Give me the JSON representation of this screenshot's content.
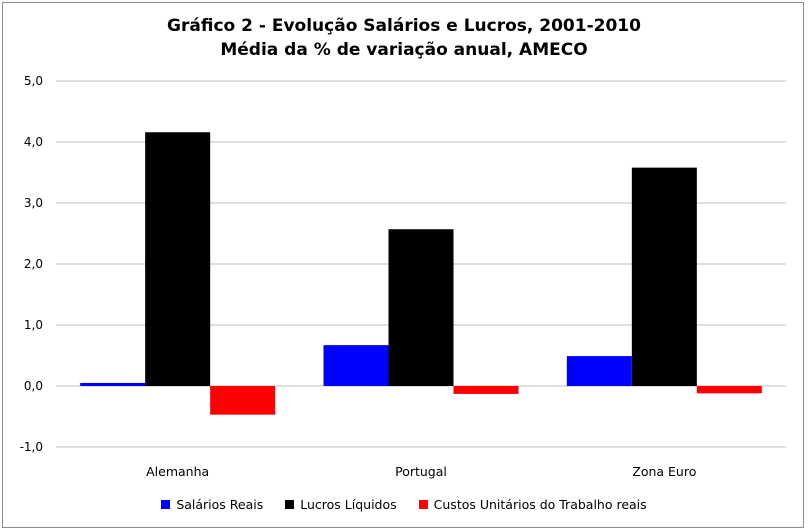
{
  "chart_data": {
    "type": "bar",
    "title_line1": "Gráfico 2 - Evolução Salários e Lucros, 2001-2010",
    "title_line2": "Média da % de variação anual, AMECO",
    "categories": [
      "Alemanha",
      "Portugal",
      "Zona Euro"
    ],
    "series": [
      {
        "name": "Salários Reais",
        "color": "#0000ff",
        "values": [
          0.05,
          0.67,
          0.49
        ]
      },
      {
        "name": "Lucros Líquidos",
        "color": "#000000",
        "values": [
          4.16,
          2.57,
          3.58
        ]
      },
      {
        "name": "Custos Unitários do Trabalho reais",
        "color": "#ff0000",
        "values": [
          -0.47,
          -0.13,
          -0.12
        ]
      }
    ],
    "ylim": [
      -1.0,
      5.0
    ],
    "yticks": [
      "-1,0",
      "0,0",
      "1,0",
      "2,0",
      "3,0",
      "4,0",
      "5,0"
    ],
    "ytick_values": [
      -1,
      0,
      1,
      2,
      3,
      4,
      5
    ],
    "grid": true,
    "legend_position": "bottom",
    "xlabel": "",
    "ylabel": ""
  }
}
